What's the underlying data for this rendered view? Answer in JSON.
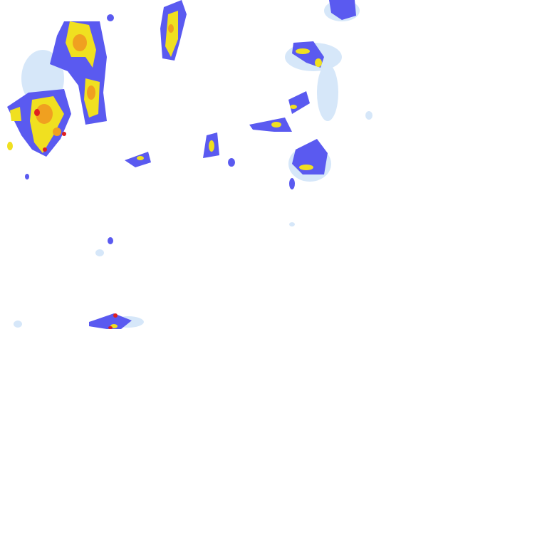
{
  "map": {
    "type": "precipitation-radar-tile",
    "colors": {
      "background": "#ffffff",
      "very_light": "#c8e0f8",
      "light": "#8fb8f0",
      "moderate": "#5a5af0",
      "heavy": "#f0e020",
      "very_heavy": "#f0a020",
      "extreme": "#e02020"
    }
  }
}
